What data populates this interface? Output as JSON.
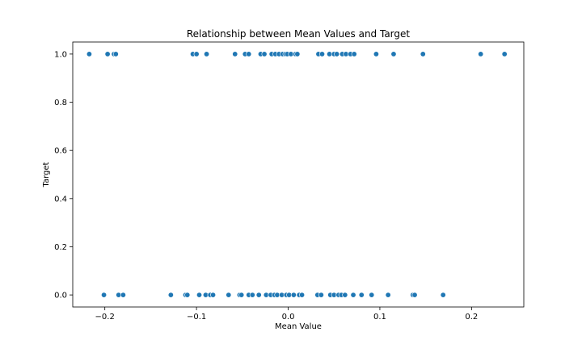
{
  "chart_data": {
    "type": "scatter",
    "title": "Relationship between Mean Values and Target",
    "xlabel": "Mean Value",
    "ylabel": "Target",
    "xlim": [
      -0.235,
      0.257
    ],
    "ylim": [
      -0.05,
      1.05
    ],
    "xticks": [
      -0.2,
      -0.1,
      0.0,
      0.1,
      0.2
    ],
    "xtick_labels": [
      "−0.2",
      "−0.1",
      "0.0",
      "0.1",
      "0.2"
    ],
    "yticks": [
      0.0,
      0.2,
      0.4,
      0.6,
      0.8,
      1.0
    ],
    "ytick_labels": [
      "0.0",
      "0.2",
      "0.4",
      "0.6",
      "0.8",
      "1.0"
    ],
    "grid": false,
    "legend": "none",
    "point_color": "#1f77b4",
    "points": [
      {
        "x": -0.217,
        "y": 1
      },
      {
        "x": -0.197,
        "y": 1
      },
      {
        "x": -0.19,
        "y": 1
      },
      {
        "x": -0.188,
        "y": 1
      },
      {
        "x": -0.104,
        "y": 1
      },
      {
        "x": -0.1,
        "y": 1
      },
      {
        "x": -0.089,
        "y": 1
      },
      {
        "x": -0.058,
        "y": 1
      },
      {
        "x": -0.047,
        "y": 1
      },
      {
        "x": -0.043,
        "y": 1
      },
      {
        "x": -0.03,
        "y": 1
      },
      {
        "x": -0.026,
        "y": 1
      },
      {
        "x": -0.018,
        "y": 1
      },
      {
        "x": -0.014,
        "y": 1
      },
      {
        "x": -0.01,
        "y": 1
      },
      {
        "x": -0.006,
        "y": 1
      },
      {
        "x": -0.003,
        "y": 1
      },
      {
        "x": -0.001,
        "y": 1
      },
      {
        "x": 0.003,
        "y": 1
      },
      {
        "x": 0.008,
        "y": 1
      },
      {
        "x": 0.01,
        "y": 1
      },
      {
        "x": 0.033,
        "y": 1
      },
      {
        "x": 0.037,
        "y": 1
      },
      {
        "x": 0.045,
        "y": 1
      },
      {
        "x": 0.05,
        "y": 1
      },
      {
        "x": 0.053,
        "y": 1
      },
      {
        "x": 0.059,
        "y": 1
      },
      {
        "x": 0.063,
        "y": 1
      },
      {
        "x": 0.068,
        "y": 1
      },
      {
        "x": 0.072,
        "y": 1
      },
      {
        "x": 0.096,
        "y": 1
      },
      {
        "x": 0.115,
        "y": 1
      },
      {
        "x": 0.147,
        "y": 1
      },
      {
        "x": 0.21,
        "y": 1
      },
      {
        "x": 0.236,
        "y": 1
      },
      {
        "x": -0.201,
        "y": 0
      },
      {
        "x": -0.185,
        "y": 0
      },
      {
        "x": -0.18,
        "y": 0
      },
      {
        "x": -0.128,
        "y": 0
      },
      {
        "x": -0.112,
        "y": 0
      },
      {
        "x": -0.11,
        "y": 0
      },
      {
        "x": -0.097,
        "y": 0
      },
      {
        "x": -0.09,
        "y": 0
      },
      {
        "x": -0.085,
        "y": 0
      },
      {
        "x": -0.082,
        "y": 0
      },
      {
        "x": -0.065,
        "y": 0
      },
      {
        "x": -0.053,
        "y": 0
      },
      {
        "x": -0.051,
        "y": 0
      },
      {
        "x": -0.043,
        "y": 0
      },
      {
        "x": -0.039,
        "y": 0
      },
      {
        "x": -0.032,
        "y": 0
      },
      {
        "x": -0.024,
        "y": 0
      },
      {
        "x": -0.019,
        "y": 0
      },
      {
        "x": -0.015,
        "y": 0
      },
      {
        "x": -0.012,
        "y": 0
      },
      {
        "x": -0.007,
        "y": 0
      },
      {
        "x": -0.002,
        "y": 0
      },
      {
        "x": 0.001,
        "y": 0
      },
      {
        "x": 0.006,
        "y": 0
      },
      {
        "x": 0.012,
        "y": 0
      },
      {
        "x": 0.015,
        "y": 0
      },
      {
        "x": 0.032,
        "y": 0
      },
      {
        "x": 0.036,
        "y": 0
      },
      {
        "x": 0.046,
        "y": 0
      },
      {
        "x": 0.05,
        "y": 0
      },
      {
        "x": 0.055,
        "y": 0
      },
      {
        "x": 0.058,
        "y": 0
      },
      {
        "x": 0.062,
        "y": 0
      },
      {
        "x": 0.071,
        "y": 0
      },
      {
        "x": 0.08,
        "y": 0
      },
      {
        "x": 0.091,
        "y": 0
      },
      {
        "x": 0.109,
        "y": 0
      },
      {
        "x": 0.136,
        "y": 0
      },
      {
        "x": 0.138,
        "y": 0
      },
      {
        "x": 0.169,
        "y": 0
      }
    ]
  }
}
